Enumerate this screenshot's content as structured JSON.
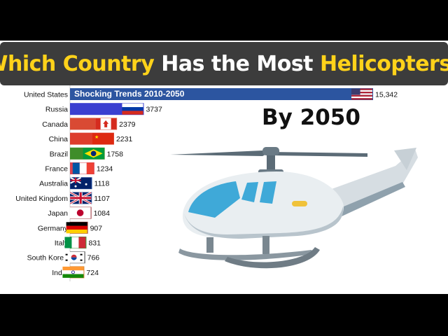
{
  "title": {
    "parts": [
      {
        "text": "Which ",
        "color": "yellow"
      },
      {
        "text": "Country ",
        "color": "yellow"
      },
      {
        "text": "Has the Most ",
        "color": "white"
      },
      {
        "text": "Helicopters",
        "color": "yellow"
      },
      {
        "text": "?",
        "color": "white"
      }
    ]
  },
  "chart_data": {
    "type": "bar",
    "orientation": "horizontal",
    "subtitle": "Shocking Trends 2010-2050",
    "period_label": "By 2050",
    "categories": [
      "United States",
      "Russia",
      "Canada",
      "China",
      "Brazil",
      "France",
      "Australia",
      "United Kingdom",
      "Japan",
      "Germany",
      "Italy",
      "South Korea",
      "India"
    ],
    "values": [
      15342,
      3737,
      2379,
      2231,
      1758,
      1234,
      1118,
      1107,
      1084,
      907,
      831,
      766,
      724
    ],
    "value_labels": [
      "15,342",
      "3737",
      "2379",
      "2231",
      "1758",
      "1234",
      "1118",
      "1107",
      "1084",
      "907",
      "831",
      "766",
      "724"
    ],
    "bar_colors": [
      "#2c55a0",
      "#3a3fd0",
      "#d94a33",
      "#dd3d2c",
      "#3f8d2a",
      "#d9424f",
      "#2d56a4",
      "#2e4a92",
      "#9a2e35",
      "#9a3a34",
      "#3a9a3a",
      "#3c3c3c",
      "#d88535"
    ],
    "flags": [
      "us",
      "ru",
      "ca",
      "cn",
      "br",
      "fr",
      "au",
      "gb",
      "jp",
      "de",
      "it",
      "kr",
      "in"
    ],
    "xlim": [
      0,
      15342
    ],
    "grid": false,
    "legend": "none"
  },
  "colors": {
    "yellow": "#ffd21a",
    "white": "#ffffff",
    "banner": "#3c3c3c"
  },
  "illustration": "helicopter-icon"
}
